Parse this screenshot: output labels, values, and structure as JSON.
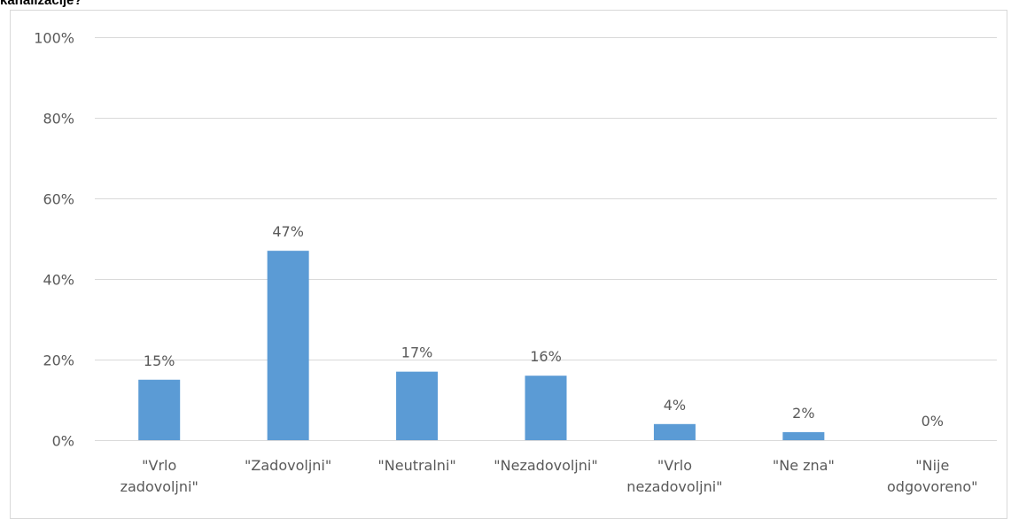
{
  "chart_data": {
    "type": "bar",
    "title": "kanalizacije?",
    "categories": [
      [
        "\"Vrlo",
        "zadovoljni\""
      ],
      [
        "\"Zadovoljni\""
      ],
      [
        "\"Neutralni\""
      ],
      [
        "\"Nezadovoljni\""
      ],
      [
        "\"Vrlo",
        "nezadovoljni\""
      ],
      [
        "\"Ne zna\""
      ],
      [
        "\"Nije",
        "odgovoreno\""
      ]
    ],
    "values": [
      15,
      47,
      17,
      16,
      4,
      2,
      0
    ],
    "data_labels": [
      "15%",
      "47%",
      "17%",
      "16%",
      "4%",
      "2%",
      "0%"
    ],
    "yticks": [
      0,
      20,
      40,
      60,
      80,
      100
    ],
    "ytick_labels": [
      "0%",
      "20%",
      "40%",
      "60%",
      "80%",
      "100%"
    ],
    "ylim": [
      0,
      100
    ],
    "grid": true,
    "legend": "none",
    "bar_color": "#5b9bd5",
    "grid_color": "#d9d9d9",
    "text_color": "#595959"
  }
}
